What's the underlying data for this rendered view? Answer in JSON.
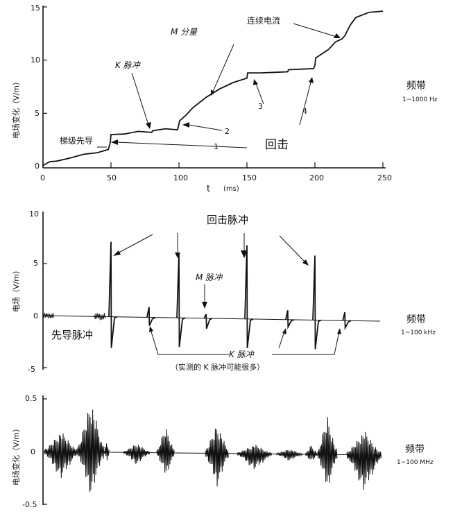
{
  "chart_data": [
    {
      "id": "top",
      "type": "line",
      "ylabel": "电场变化（V/m）",
      "xlabel": "t",
      "xunit": "(ms)",
      "xlim": [
        0,
        250
      ],
      "ylim": [
        0,
        15
      ],
      "xticks": [
        "0",
        "50",
        "100",
        "150",
        "200",
        "250"
      ],
      "yticks": [
        "0",
        "5",
        "10",
        "15"
      ],
      "band_label": "频带",
      "band_value": "1~1000 Hz",
      "annotations": {
        "stepped_leader": "梯级先导",
        "k_change": "K 脉冲",
        "m_component": "M 分量",
        "continuing_current": "连续电流",
        "return_stroke": "回击",
        "n1": "1",
        "n2": "2",
        "n3": "3",
        "n4": "4"
      },
      "series": [
        {
          "x": [
            0,
            5,
            10,
            20,
            30,
            40,
            48,
            49.5,
            50,
            60,
            70,
            80,
            80.5,
            90,
            99,
            100,
            100.5,
            105,
            110,
            120,
            130,
            140,
            150,
            150.5,
            160,
            170,
            180,
            180.5,
            190,
            199,
            200,
            200.5,
            210,
            215,
            220,
            222,
            226,
            230,
            240,
            250
          ],
          "y": [
            0.1,
            0.3,
            0.5,
            0.8,
            1.0,
            1.3,
            1.6,
            2.1,
            3.0,
            3.05,
            3.15,
            3.2,
            3.35,
            3.4,
            3.45,
            4.0,
            4.3,
            4.8,
            5.5,
            6.5,
            7.3,
            7.9,
            8.3,
            8.8,
            8.8,
            8.85,
            8.9,
            9.1,
            9.15,
            9.2,
            9.5,
            10.2,
            11.0,
            11.7,
            12.0,
            12.3,
            13.3,
            14.0,
            14.5,
            14.6
          ]
        }
      ]
    },
    {
      "id": "middle",
      "type": "line",
      "ylabel": "电场（V/m）",
      "ylim": [
        -5,
        10
      ],
      "yticks": [
        "10",
        "5",
        "0",
        "-5"
      ],
      "band_label": "频带",
      "band_value": "1~100 kHz",
      "annotations": {
        "return_stroke_pulses": "回击脉冲",
        "m_pulse": "M 脉冲",
        "leader_pulses": "先导脉冲",
        "k_pulses": "K 脉冲",
        "k_note": "（实测的 K 脉冲可能很多）"
      },
      "pulses": [
        {
          "kind": "return",
          "x": 50,
          "peak": 7.2,
          "undershoot": -3.0
        },
        {
          "kind": "return",
          "x": 100,
          "peak": 6.2,
          "undershoot": -2.8
        },
        {
          "kind": "return",
          "x": 150,
          "peak": 7.1,
          "undershoot": -2.8
        },
        {
          "kind": "return",
          "x": 200,
          "peak": 6.2,
          "undershoot": -2.8
        },
        {
          "kind": "k",
          "x": 78,
          "peak": 1.0,
          "undershoot": -0.8
        },
        {
          "kind": "m",
          "x": 120,
          "peak": 0.4,
          "undershoot": -1.0
        },
        {
          "kind": "k",
          "x": 180,
          "peak": 0.9,
          "undershoot": -0.7
        },
        {
          "kind": "k",
          "x": 222,
          "peak": 0.8,
          "undershoot": -0.7
        }
      ]
    },
    {
      "id": "bottom",
      "type": "line",
      "ylabel": "电场变化（V/m）",
      "ylim": [
        -0.5,
        0.5
      ],
      "yticks": [
        "0.5",
        "0",
        "-0.5"
      ],
      "band_label": "频带",
      "band_value": "1~100 MHz"
    }
  ]
}
